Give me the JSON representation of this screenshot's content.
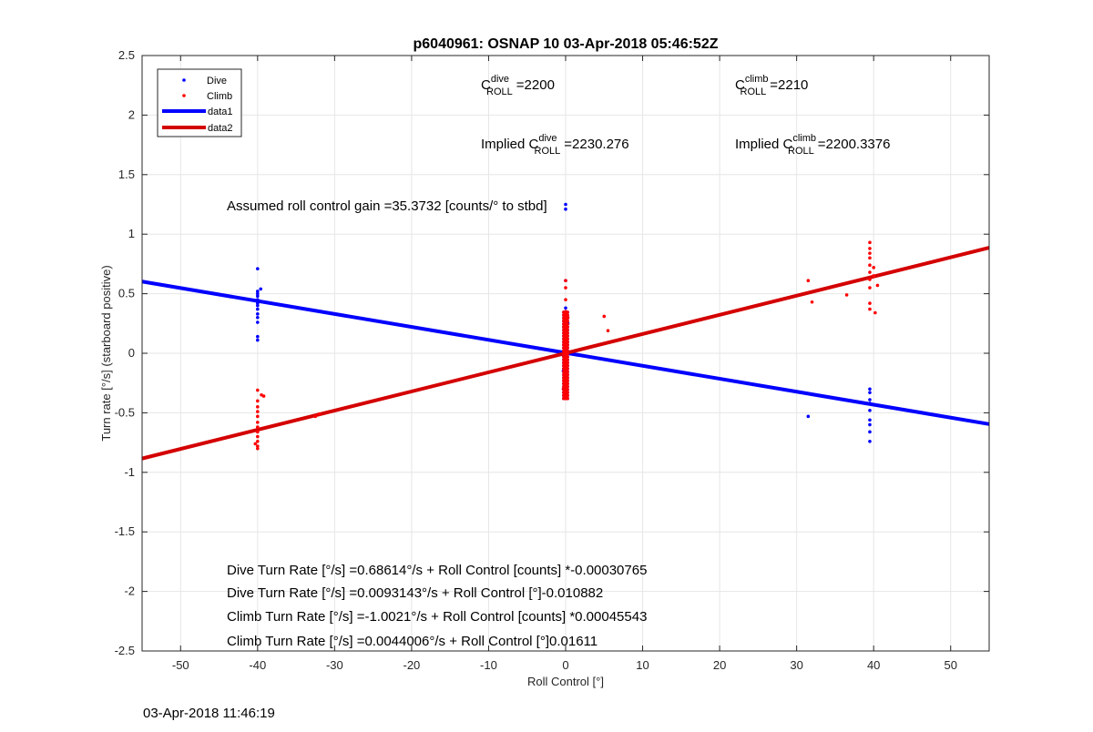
{
  "chart_data": {
    "type": "scatter",
    "title": "p6040961: OSNAP 10 03-Apr-2018 05:46:52Z",
    "xlabel": "Roll Control [°]",
    "ylabel": "Turn rate [°/s] (starboard positive)",
    "xlim": [
      -55,
      55
    ],
    "ylim": [
      -2.5,
      2.5
    ],
    "x_ticks": [
      -50,
      -40,
      -30,
      -20,
      -10,
      0,
      10,
      20,
      30,
      40,
      50
    ],
    "y_ticks": [
      -2.5,
      -2,
      -1.5,
      -1,
      -0.5,
      0,
      0.5,
      1,
      1.5,
      2,
      2.5
    ],
    "grid": true,
    "legend_position": "top-left",
    "series": [
      {
        "name": "Dive",
        "kind": "points",
        "color": "#0000ff",
        "points": [
          [
            -40,
            0.71
          ],
          [
            -40,
            0.52
          ],
          [
            -40,
            0.5
          ],
          [
            -40,
            0.48
          ],
          [
            -40,
            0.45
          ],
          [
            -40,
            0.42
          ],
          [
            -40,
            0.4
          ],
          [
            -40,
            0.37
          ],
          [
            -40,
            0.33
          ],
          [
            -40,
            0.3
          ],
          [
            -40,
            0.26
          ],
          [
            -40,
            0.14
          ],
          [
            -40,
            0.11
          ],
          [
            -39.6,
            0.54
          ],
          [
            0,
            1.25
          ],
          [
            0,
            1.21
          ],
          [
            0,
            0.61
          ],
          [
            0,
            0.38
          ],
          [
            0,
            0.3
          ],
          [
            0,
            0.22
          ],
          [
            0,
            0.15
          ],
          [
            0,
            0.08
          ],
          [
            0,
            0.02
          ],
          [
            0,
            -0.05
          ],
          [
            0,
            -0.12
          ],
          [
            0,
            -0.2
          ],
          [
            0,
            -0.28
          ],
          [
            0,
            -0.34
          ],
          [
            0,
            -0.38
          ],
          [
            0.3,
            0.25
          ],
          [
            -0.3,
            -0.15
          ],
          [
            31.5,
            -0.53
          ],
          [
            39.5,
            -0.3
          ],
          [
            39.5,
            -0.33
          ],
          [
            39.5,
            -0.39
          ],
          [
            39.5,
            -0.42
          ],
          [
            39.5,
            -0.48
          ],
          [
            39.5,
            -0.56
          ],
          [
            39.5,
            -0.6
          ],
          [
            39.5,
            -0.66
          ],
          [
            39.5,
            -0.74
          ]
        ]
      },
      {
        "name": "Climb",
        "kind": "points",
        "color": "#ff0000",
        "points": [
          [
            -40,
            -0.31
          ],
          [
            -39.5,
            -0.35
          ],
          [
            -39.2,
            -0.36
          ],
          [
            -40,
            -0.4
          ],
          [
            -40,
            -0.45
          ],
          [
            -40,
            -0.49
          ],
          [
            -40,
            -0.53
          ],
          [
            -40,
            -0.58
          ],
          [
            -40,
            -0.62
          ],
          [
            -40,
            -0.66
          ],
          [
            -40,
            -0.7
          ],
          [
            -40,
            -0.74
          ],
          [
            -40,
            -0.78
          ],
          [
            -40,
            -0.8
          ],
          [
            -40.3,
            -0.76
          ],
          [
            -32.5,
            -0.53
          ],
          [
            -32,
            -0.51
          ],
          [
            0,
            0.61
          ],
          [
            0,
            0.55
          ],
          [
            0,
            0.45
          ],
          [
            0,
            0.35
          ],
          [
            0,
            0.25
          ],
          [
            0,
            0.15
          ],
          [
            0,
            0.05
          ],
          [
            0,
            -0.05
          ],
          [
            0,
            -0.15
          ],
          [
            0,
            -0.25
          ],
          [
            0,
            -0.35
          ],
          [
            0.3,
            0.3
          ],
          [
            -0.3,
            -0.3
          ],
          [
            5,
            0.31
          ],
          [
            5.5,
            0.19
          ],
          [
            31.5,
            0.61
          ],
          [
            32,
            0.43
          ],
          [
            36.5,
            0.49
          ],
          [
            39.5,
            0.93
          ],
          [
            39.5,
            0.88
          ],
          [
            39.5,
            0.84
          ],
          [
            39.5,
            0.8
          ],
          [
            39.5,
            0.74
          ],
          [
            39.5,
            0.68
          ],
          [
            39.5,
            0.62
          ],
          [
            39.5,
            0.55
          ],
          [
            39.5,
            0.42
          ],
          [
            39.5,
            0.37
          ],
          [
            40,
            0.72
          ],
          [
            40,
            0.65
          ],
          [
            40.2,
            0.34
          ],
          [
            40.5,
            0.57
          ]
        ]
      },
      {
        "name": "data1",
        "kind": "line",
        "color": "#0000ff",
        "x": [
          -55,
          55
        ],
        "y": [
          0.602,
          -0.595
        ]
      },
      {
        "name": "data2",
        "kind": "line",
        "color": "#d40000",
        "x": [
          -55,
          55
        ],
        "y": [
          -0.884,
          0.886
        ]
      }
    ],
    "annotations": {
      "c_dive": {
        "prefix": "C",
        "sup": "dive",
        "sub": "ROLL",
        "value": "=2200"
      },
      "c_climb": {
        "prefix": "C",
        "sup": "climb",
        "sub": "ROLL",
        "value": "=2210"
      },
      "implied_dive": {
        "prefix": "Implied C",
        "sup": "dive",
        "sub": "ROLL",
        "value": "=2230.276"
      },
      "implied_climb": {
        "prefix": "Implied C",
        "sup": "climb",
        "sub": "ROLL",
        "value": "=2200.3376"
      },
      "gain": "Assumed roll control gain =35.3732 [counts/° to stbd]",
      "eq1": "Dive Turn Rate [°/s] =0.68614°/s + Roll Control [counts] *-0.00030765",
      "eq2": "Dive Turn Rate [°/s] =0.0093143°/s + Roll Control [°]-0.010882",
      "eq3": "Climb Turn Rate [°/s] =-1.0021°/s + Roll Control [counts] *0.00045543",
      "eq4": "Climb Turn Rate [°/s] =0.0044006°/s + Roll Control [°]0.01611"
    }
  },
  "footer": {
    "timestamp": "03-Apr-2018 11:46:19"
  }
}
